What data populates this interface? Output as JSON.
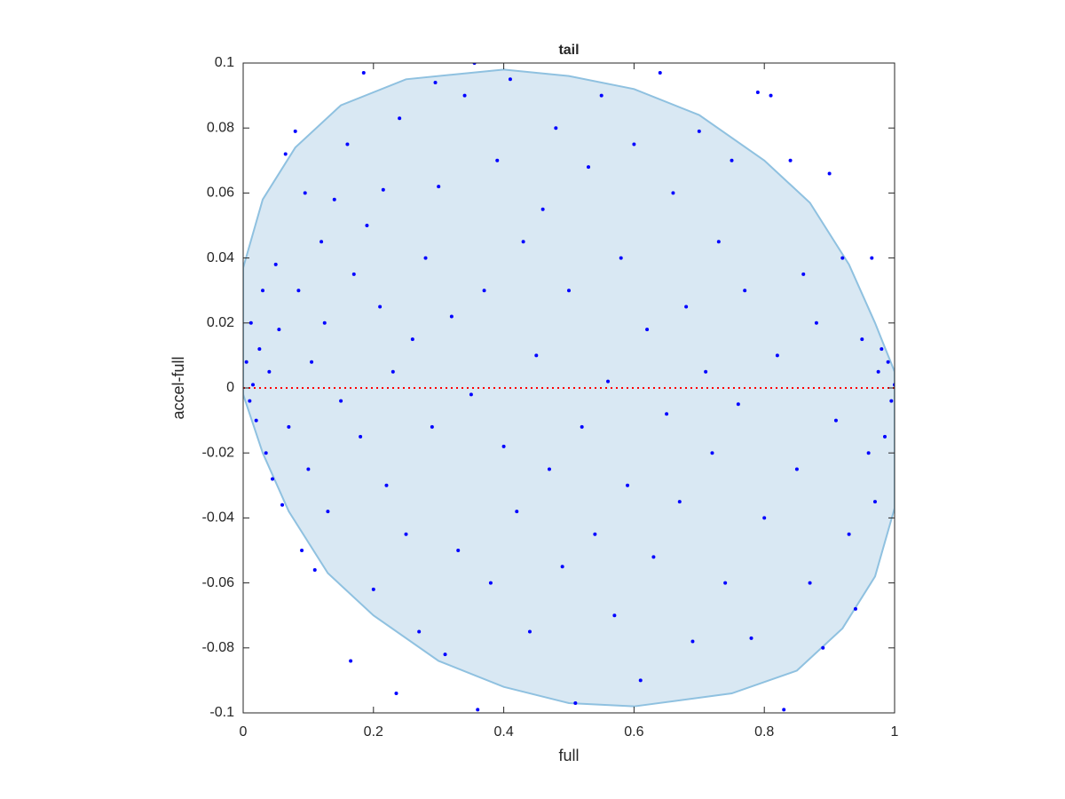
{
  "chart_data": {
    "type": "scatter",
    "title": "tail",
    "xlabel": "full",
    "ylabel": "accel-full",
    "xlim": [
      0,
      1
    ],
    "ylim": [
      -0.1,
      0.1
    ],
    "xticks": [
      0,
      0.2,
      0.4,
      0.6,
      0.8,
      1
    ],
    "yticks": [
      -0.1,
      -0.08,
      -0.06,
      -0.04,
      -0.02,
      0,
      0.02,
      0.04,
      0.06,
      0.08,
      0.1
    ],
    "color": "#0000ff",
    "hline": {
      "value": 0,
      "color": "#ff0000"
    },
    "region": {
      "color": "#d9e8f3",
      "edge_color": "#8fc1e0",
      "x": [
        0,
        0.03,
        0.08,
        0.15,
        0.25,
        0.4,
        0.5,
        0.6,
        0.7,
        0.8,
        0.87,
        0.93,
        0.97,
        1.0,
        1.0,
        0.97,
        0.92,
        0.85,
        0.75,
        0.6,
        0.5,
        0.4,
        0.3,
        0.2,
        0.13,
        0.07,
        0.03,
        0
      ],
      "y": [
        0.037,
        0.058,
        0.074,
        0.087,
        0.095,
        0.098,
        0.096,
        0.092,
        0.084,
        0.07,
        0.057,
        0.038,
        0.02,
        0.005,
        -0.037,
        -0.058,
        -0.074,
        -0.087,
        -0.094,
        -0.098,
        -0.097,
        -0.092,
        -0.084,
        -0.07,
        -0.057,
        -0.038,
        -0.02,
        -0.002
      ]
    },
    "x": [
      0.005,
      0.01,
      0.012,
      0.015,
      0.02,
      0.025,
      0.03,
      0.035,
      0.04,
      0.045,
      0.05,
      0.055,
      0.06,
      0.065,
      0.07,
      0.08,
      0.085,
      0.09,
      0.095,
      0.1,
      0.105,
      0.11,
      0.12,
      0.125,
      0.13,
      0.14,
      0.15,
      0.16,
      0.165,
      0.17,
      0.18,
      0.185,
      0.19,
      0.2,
      0.21,
      0.215,
      0.22,
      0.23,
      0.235,
      0.24,
      0.25,
      0.26,
      0.27,
      0.28,
      0.29,
      0.295,
      0.3,
      0.31,
      0.32,
      0.33,
      0.34,
      0.35,
      0.355,
      0.36,
      0.37,
      0.38,
      0.39,
      0.4,
      0.41,
      0.42,
      0.43,
      0.44,
      0.45,
      0.46,
      0.47,
      0.48,
      0.49,
      0.5,
      0.51,
      0.52,
      0.53,
      0.54,
      0.55,
      0.56,
      0.57,
      0.58,
      0.59,
      0.6,
      0.61,
      0.62,
      0.63,
      0.64,
      0.65,
      0.66,
      0.67,
      0.68,
      0.69,
      0.7,
      0.71,
      0.72,
      0.73,
      0.74,
      0.75,
      0.76,
      0.77,
      0.78,
      0.79,
      0.8,
      0.81,
      0.82,
      0.83,
      0.84,
      0.85,
      0.86,
      0.87,
      0.88,
      0.89,
      0.9,
      0.91,
      0.92,
      0.93,
      0.94,
      0.95,
      0.96,
      0.965,
      0.97,
      0.975,
      0.98,
      0.985,
      0.99,
      0.995,
      1.0
    ],
    "values": [
      0.008,
      -0.004,
      0.02,
      0.001,
      -0.01,
      0.012,
      0.03,
      -0.02,
      0.005,
      -0.028,
      0.038,
      0.018,
      -0.036,
      0.072,
      -0.012,
      0.079,
      0.03,
      -0.05,
      0.06,
      -0.025,
      0.008,
      -0.056,
      0.045,
      0.02,
      -0.038,
      0.058,
      -0.004,
      0.075,
      -0.084,
      0.035,
      -0.015,
      0.097,
      0.05,
      -0.062,
      0.025,
      0.061,
      -0.03,
      0.005,
      -0.094,
      0.083,
      -0.045,
      0.015,
      -0.075,
      0.04,
      -0.012,
      0.094,
      0.062,
      -0.082,
      0.022,
      -0.05,
      0.09,
      -0.002,
      0.1,
      -0.099,
      0.03,
      -0.06,
      0.07,
      -0.018,
      0.095,
      -0.038,
      0.045,
      -0.075,
      0.01,
      0.055,
      -0.025,
      0.08,
      -0.055,
      0.03,
      -0.097,
      -0.012,
      0.068,
      -0.045,
      0.09,
      0.002,
      -0.07,
      0.04,
      -0.03,
      0.075,
      -0.09,
      0.018,
      -0.052,
      0.097,
      -0.008,
      0.06,
      -0.035,
      0.025,
      -0.078,
      0.079,
      0.005,
      -0.02,
      0.045,
      -0.06,
      0.07,
      -0.005,
      0.03,
      -0.077,
      0.091,
      -0.04,
      0.09,
      0.01,
      -0.099,
      0.07,
      -0.025,
      0.035,
      -0.06,
      0.02,
      -0.08,
      0.066,
      -0.01,
      0.04,
      -0.045,
      -0.068,
      0.015,
      -0.02,
      0.04,
      -0.035,
      0.005,
      0.012,
      -0.015,
      0.008,
      -0.004,
      0.001
    ]
  }
}
